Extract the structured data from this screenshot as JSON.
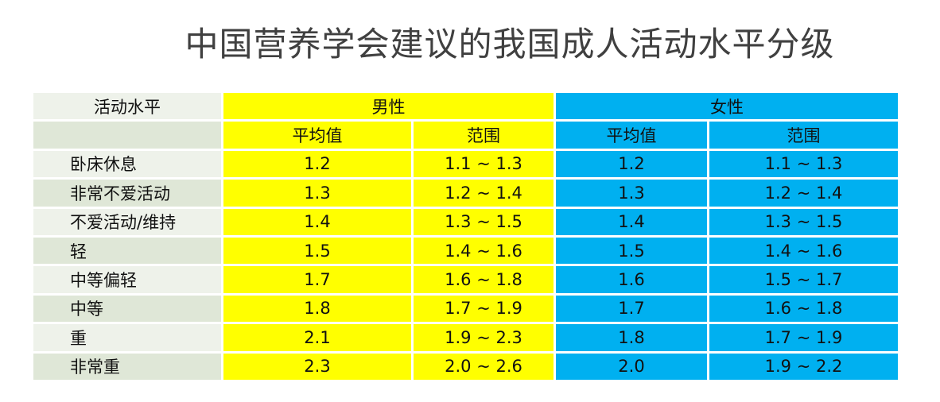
{
  "header": {
    "title": "中国营养学会建议的我国成人活动水平分级"
  },
  "table": {
    "header": [
      "活动水平",
      "男性",
      "女性"
    ],
    "subheader": [
      "平均值",
      "范围",
      "平均值",
      "范围"
    ],
    "rows": [
      [
        "卧床休息",
        "1.2",
        "1.1 ~ 1.3",
        "1.2",
        "1.1 ~ 1.3"
      ],
      [
        "非常不爱活动",
        "1.3",
        "1.2 ~ 1.4",
        "1.3",
        "1.2 ~ 1.4"
      ],
      [
        "不爱活动/维持",
        "1.4",
        "1.3 ~ 1.5",
        "1.4",
        "1.3 ~ 1.5"
      ],
      [
        "轻",
        "1.5",
        "1.4 ~ 1.6",
        "1.5",
        "1.4 ~ 1.6"
      ],
      [
        "中等偏轻",
        "1.7",
        "1.6 ~ 1.8",
        "1.6",
        "1.5 ~ 1.7"
      ],
      [
        "中等",
        "1.8",
        "1.7 ~ 1.9",
        "1.7",
        "1.6 ~ 1.8"
      ],
      [
        "重",
        "2.1",
        "1.9 ~ 2.3",
        "1.8",
        "1.7 ~ 1.9"
      ],
      [
        "非常重",
        "2.3",
        "2.0 ~ 2.6",
        "2.0",
        "1.9 ~ 2.2"
      ]
    ]
  }
}
